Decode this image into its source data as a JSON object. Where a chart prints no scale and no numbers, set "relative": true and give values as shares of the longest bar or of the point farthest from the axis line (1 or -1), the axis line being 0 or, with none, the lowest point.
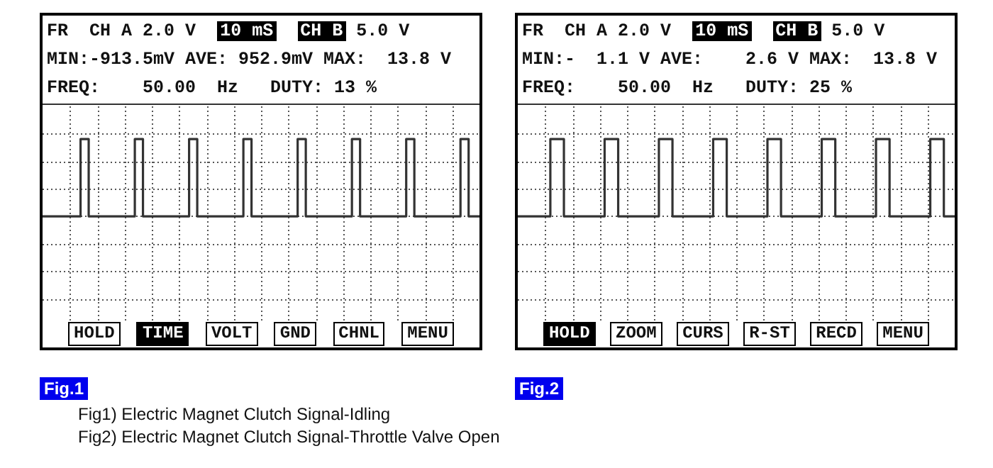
{
  "chart_data": [
    {
      "type": "step",
      "title": "Fig.1",
      "relative": true,
      "grid": true,
      "color": "#333333",
      "annotations": [
        "FR",
        "CH A 2.0 V",
        "10 mS",
        "CH B",
        "5.0 V",
        "MIN:-913.5mV AVE: 952.9mV MAX:  13.8 V",
        "FREQ:    50.00  Hz   DUTY: 13 %",
        "HOLD",
        "TIME",
        "VOLT",
        "GND",
        "CHNL",
        "MENU",
        "Fig1) Electric Magnet Clutch Signal-Idling"
      ],
      "categories": [
        null,
        null,
        null,
        null,
        null,
        null,
        null,
        null,
        null,
        null,
        null,
        null,
        null,
        null,
        null,
        null,
        null,
        null,
        null,
        null,
        null,
        null,
        null,
        null,
        null,
        null,
        null,
        null,
        null,
        null,
        null,
        null,
        null,
        null,
        null,
        null,
        null,
        null,
        null,
        null,
        null,
        null,
        null,
        null,
        null,
        null,
        null,
        null,
        null,
        null,
        null,
        null,
        null,
        null,
        null,
        null,
        null,
        null,
        null,
        null,
        null,
        null,
        null,
        null,
        null,
        null,
        null,
        null,
        null,
        null,
        null,
        null,
        null,
        null,
        null,
        null,
        null,
        null,
        null,
        null,
        null,
        null,
        null,
        null,
        null,
        null,
        null,
        null,
        null,
        null,
        null,
        null,
        null,
        null,
        null,
        null,
        null,
        null,
        null,
        null,
        null,
        null,
        null,
        null,
        null,
        null,
        null,
        null,
        null,
        null,
        null,
        null,
        null,
        null,
        null,
        null,
        null,
        null,
        null,
        null,
        null,
        null,
        null,
        null,
        null,
        null,
        null,
        null,
        null,
        null,
        null,
        null,
        null,
        null,
        null,
        null,
        null,
        null,
        null,
        null,
        null,
        null,
        null,
        null,
        null,
        null,
        null,
        null,
        null,
        null,
        null,
        null,
        null,
        null,
        null,
        null,
        null,
        null,
        null,
        null,
        null,
        null
      ],
      "values": [
        0,
        0,
        0,
        0,
        0,
        0,
        0,
        0,
        0,
        0,
        0,
        0,
        0,
        0,
        1,
        1,
        1,
        0,
        0,
        0,
        0,
        0,
        0,
        0,
        0,
        0,
        0,
        0,
        0,
        0,
        0,
        0,
        0,
        0,
        1,
        1,
        1,
        0,
        0,
        0,
        0,
        0,
        0,
        0,
        0,
        0,
        0,
        0,
        0,
        0,
        0,
        0,
        0,
        0,
        1,
        1,
        1,
        0,
        0,
        0,
        0,
        0,
        0,
        0,
        0,
        0,
        0,
        0,
        0,
        0,
        0,
        0,
        0,
        0,
        1,
        1,
        1,
        0,
        0,
        0,
        0,
        0,
        0,
        0,
        0,
        0,
        0,
        0,
        0,
        0,
        0,
        0,
        0,
        0,
        1,
        1,
        1,
        0,
        0,
        0,
        0,
        0,
        0,
        0,
        0,
        0,
        0,
        0,
        0,
        0,
        0,
        0,
        0,
        0,
        1,
        1,
        1,
        0,
        0,
        0,
        0,
        0,
        0,
        0,
        0,
        0,
        0,
        0,
        0,
        0,
        0,
        0,
        0,
        0,
        1,
        1,
        1,
        0,
        0,
        0,
        0,
        0,
        0,
        0,
        0,
        0,
        0,
        0,
        0,
        0,
        0,
        0,
        0,
        0,
        1,
        1,
        1,
        0,
        0,
        0,
        0,
        0
      ]
    },
    {
      "type": "step",
      "title": "Fig.2",
      "relative": true,
      "grid": true,
      "color": "#333333",
      "annotations": [
        "FR",
        "CH A 2.0 V",
        "10 mS",
        "CH B",
        "5.0 V",
        "MIN:-  1.1 V AVE:    2.6 V MAX:  13.8 V",
        "FREQ:    50.00  Hz   DUTY: 25 %",
        "HOLD",
        "ZOOM",
        "CURS",
        "R-ST",
        "RECD",
        "MENU",
        "Fig2) Electric Magnet Clutch Signal-Throttle Valve Open"
      ],
      "categories": [
        null,
        null,
        null,
        null,
        null,
        null,
        null,
        null,
        null,
        null,
        null,
        null,
        null,
        null,
        null,
        null,
        null,
        null,
        null,
        null,
        null,
        null,
        null,
        null,
        null,
        null,
        null,
        null,
        null,
        null,
        null,
        null,
        null,
        null,
        null,
        null,
        null,
        null,
        null,
        null,
        null,
        null,
        null,
        null,
        null,
        null,
        null,
        null,
        null,
        null,
        null,
        null,
        null,
        null,
        null,
        null,
        null,
        null,
        null,
        null,
        null,
        null,
        null,
        null,
        null,
        null,
        null,
        null,
        null,
        null,
        null,
        null,
        null,
        null,
        null,
        null,
        null,
        null,
        null,
        null,
        null,
        null,
        null,
        null,
        null,
        null,
        null,
        null,
        null,
        null,
        null,
        null,
        null,
        null,
        null,
        null,
        null,
        null,
        null,
        null,
        null,
        null,
        null,
        null,
        null,
        null,
        null,
        null,
        null,
        null,
        null,
        null,
        null,
        null,
        null,
        null,
        null,
        null,
        null,
        null,
        null,
        null,
        null,
        null,
        null,
        null,
        null,
        null,
        null,
        null,
        null,
        null,
        null,
        null,
        null,
        null,
        null,
        null,
        null,
        null,
        null,
        null,
        null,
        null,
        null,
        null,
        null,
        null,
        null,
        null,
        null,
        null,
        null,
        null,
        null,
        null,
        null,
        null,
        null,
        null,
        null,
        null
      ],
      "values": [
        0,
        0,
        0,
        0,
        0,
        0,
        0,
        0,
        0,
        0,
        0,
        0,
        1,
        1,
        1,
        1,
        1,
        0,
        0,
        0,
        0,
        0,
        0,
        0,
        0,
        0,
        0,
        0,
        0,
        0,
        0,
        0,
        1,
        1,
        1,
        1,
        1,
        0,
        0,
        0,
        0,
        0,
        0,
        0,
        0,
        0,
        0,
        0,
        0,
        0,
        0,
        0,
        1,
        1,
        1,
        1,
        1,
        0,
        0,
        0,
        0,
        0,
        0,
        0,
        0,
        0,
        0,
        0,
        0,
        0,
        0,
        0,
        1,
        1,
        1,
        1,
        1,
        0,
        0,
        0,
        0,
        0,
        0,
        0,
        0,
        0,
        0,
        0,
        0,
        0,
        0,
        0,
        1,
        1,
        1,
        1,
        1,
        0,
        0,
        0,
        0,
        0,
        0,
        0,
        0,
        0,
        0,
        0,
        0,
        0,
        0,
        0,
        1,
        1,
        1,
        1,
        1,
        0,
        0,
        0,
        0,
        0,
        0,
        0,
        0,
        0,
        0,
        0,
        0,
        0,
        0,
        0,
        1,
        1,
        1,
        1,
        1,
        0,
        0,
        0,
        0,
        0,
        0,
        0,
        0,
        0,
        0,
        0,
        0,
        0,
        0,
        0,
        1,
        1,
        1,
        1,
        1,
        0,
        0,
        0,
        0,
        0
      ]
    }
  ]
}
